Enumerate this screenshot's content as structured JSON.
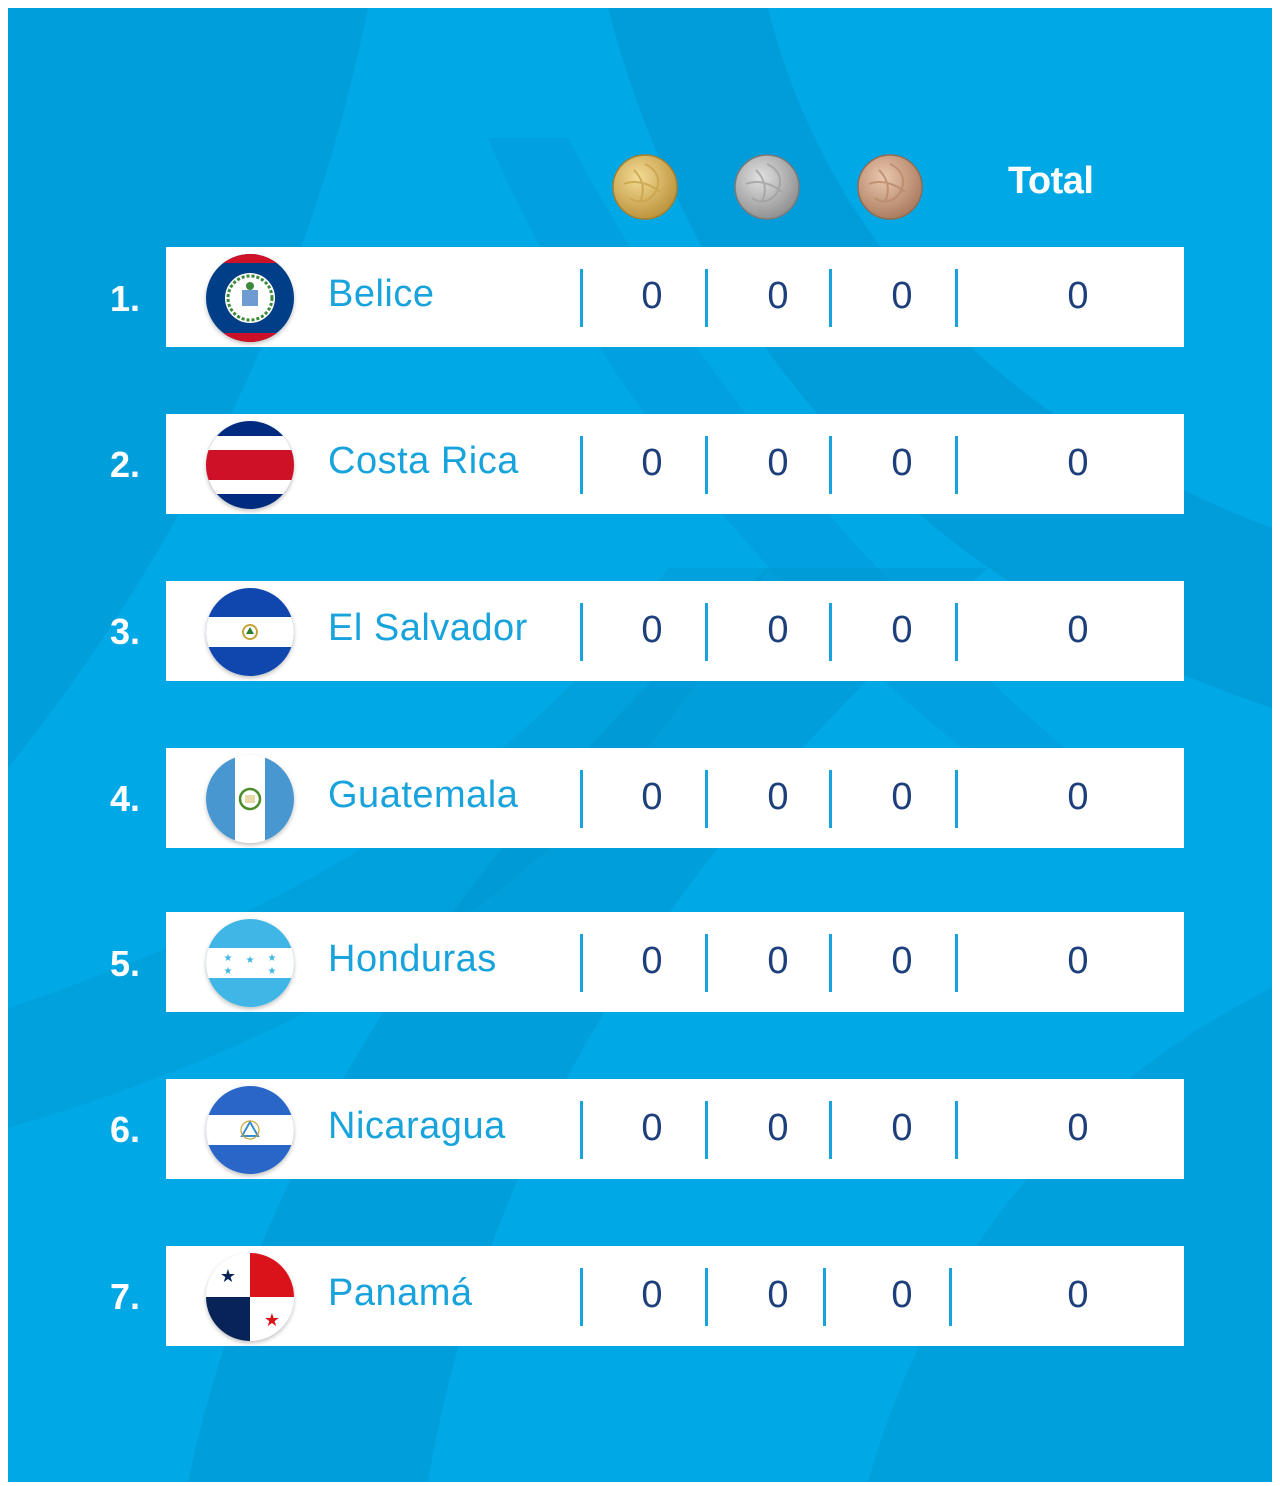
{
  "header": {
    "gold": {
      "icon": "gold-medal-icon",
      "color": "#d4b25a"
    },
    "silver": {
      "icon": "silver-medal-icon",
      "color": "#a9a9a9"
    },
    "bronze": {
      "icon": "bronze-medal-icon",
      "color": "#c99a7e"
    },
    "total_label": "Total"
  },
  "colors": {
    "background": "#00a9e6",
    "country_text": "#19a3dc",
    "number_text": "#1d3f7c"
  },
  "rows": [
    {
      "rank": "1.",
      "country": "Belice",
      "flag_icon": "belize-flag-icon",
      "gold": "0",
      "silver": "0",
      "bronze": "0",
      "total": "0"
    },
    {
      "rank": "2.",
      "country": "Costa Rica",
      "flag_icon": "costa-rica-flag-icon",
      "gold": "0",
      "silver": "0",
      "bronze": "0",
      "total": "0"
    },
    {
      "rank": "3.",
      "country": "El Salvador",
      "flag_icon": "el-salvador-flag-icon",
      "gold": "0",
      "silver": "0",
      "bronze": "0",
      "total": "0"
    },
    {
      "rank": "4.",
      "country": "Guatemala",
      "flag_icon": "guatemala-flag-icon",
      "gold": "0",
      "silver": "0",
      "bronze": "0",
      "total": "0"
    },
    {
      "rank": "5.",
      "country": "Honduras",
      "flag_icon": "honduras-flag-icon",
      "gold": "0",
      "silver": "0",
      "bronze": "0",
      "total": "0"
    },
    {
      "rank": "6.",
      "country": "Nicaragua",
      "flag_icon": "nicaragua-flag-icon",
      "gold": "0",
      "silver": "0",
      "bronze": "0",
      "total": "0"
    },
    {
      "rank": "7.",
      "country": "Panamá",
      "flag_icon": "panama-flag-icon",
      "gold": "0",
      "silver": "0",
      "bronze": "0",
      "total": "0"
    }
  ]
}
